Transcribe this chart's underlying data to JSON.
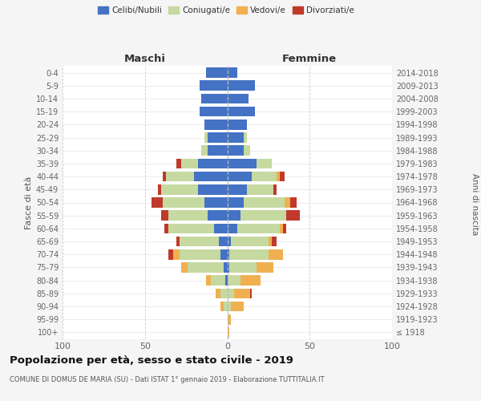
{
  "age_groups": [
    "100+",
    "95-99",
    "90-94",
    "85-89",
    "80-84",
    "75-79",
    "70-74",
    "65-69",
    "60-64",
    "55-59",
    "50-54",
    "45-49",
    "40-44",
    "35-39",
    "30-34",
    "25-29",
    "20-24",
    "15-19",
    "10-14",
    "5-9",
    "0-4"
  ],
  "birth_years": [
    "≤ 1918",
    "1919-1923",
    "1924-1928",
    "1929-1933",
    "1934-1938",
    "1939-1943",
    "1944-1948",
    "1949-1953",
    "1954-1958",
    "1959-1963",
    "1964-1968",
    "1969-1973",
    "1974-1978",
    "1979-1983",
    "1984-1988",
    "1989-1993",
    "1994-1998",
    "1999-2003",
    "2004-2008",
    "2009-2013",
    "2014-2018"
  ],
  "maschi": {
    "celibi": [
      0,
      0,
      0,
      0,
      1,
      2,
      4,
      5,
      8,
      12,
      14,
      18,
      20,
      18,
      12,
      12,
      14,
      17,
      16,
      17,
      13
    ],
    "coniugati": [
      0,
      0,
      2,
      4,
      9,
      22,
      25,
      24,
      28,
      24,
      25,
      22,
      17,
      10,
      4,
      2,
      0,
      0,
      0,
      0,
      0
    ],
    "vedovi": [
      0,
      0,
      2,
      3,
      3,
      4,
      4,
      0,
      0,
      0,
      0,
      0,
      0,
      0,
      0,
      0,
      0,
      0,
      0,
      0,
      0
    ],
    "divorziati": [
      0,
      0,
      0,
      0,
      0,
      0,
      3,
      2,
      2,
      4,
      7,
      2,
      2,
      3,
      0,
      0,
      0,
      0,
      0,
      0,
      0
    ]
  },
  "femmine": {
    "nubili": [
      0,
      0,
      0,
      0,
      0,
      1,
      1,
      2,
      6,
      8,
      10,
      12,
      15,
      18,
      10,
      10,
      12,
      17,
      13,
      17,
      6
    ],
    "coniugate": [
      0,
      0,
      2,
      4,
      8,
      17,
      24,
      23,
      26,
      28,
      25,
      16,
      15,
      9,
      4,
      2,
      0,
      0,
      0,
      0,
      0
    ],
    "vedove": [
      1,
      2,
      8,
      10,
      12,
      10,
      9,
      2,
      2,
      0,
      3,
      0,
      2,
      0,
      0,
      0,
      0,
      0,
      0,
      0,
      0
    ],
    "divorziate": [
      0,
      0,
      0,
      1,
      0,
      0,
      0,
      3,
      2,
      8,
      4,
      2,
      3,
      0,
      0,
      0,
      0,
      0,
      0,
      0,
      0
    ]
  },
  "colors": {
    "celibi_nubili": "#4472c4",
    "coniugati": "#c5d9a0",
    "vedovi": "#f0b050",
    "divorziati": "#c0392b"
  },
  "xlim": 100,
  "title": "Popolazione per età, sesso e stato civile - 2019",
  "subtitle": "COMUNE DI DOMUS DE MARIA (SU) - Dati ISTAT 1° gennaio 2019 - Elaborazione TUTTITALIA.IT",
  "ylabel_left": "Fasce di età",
  "ylabel_right": "Anni di nascita",
  "xlabel_left": "Maschi",
  "xlabel_right": "Femmine",
  "bg_color": "#f5f5f5",
  "plot_bg": "#ffffff"
}
